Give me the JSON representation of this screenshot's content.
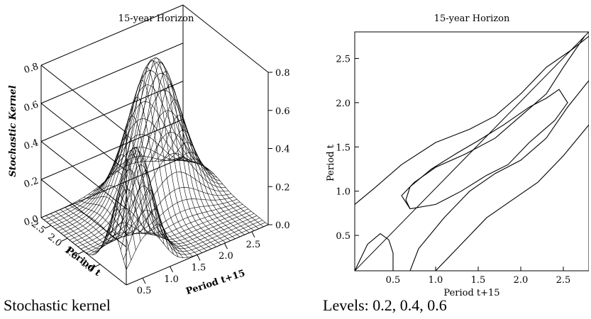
{
  "captions": {
    "left": "Stochastic kernel",
    "right": "Levels: 0.2, 0.4, 0.6"
  },
  "chart_data": [
    {
      "type": "surface",
      "title": "15-year Horizon",
      "zlabel": "Stochastic Kernel",
      "xlabel": "Period t+15",
      "ylabel": "Period t",
      "x_ticks": [
        "0.5",
        "1.0",
        "1.5",
        "2.0",
        "2.5"
      ],
      "y_ticks": [
        "1.0",
        "1.5",
        "2.0",
        "2.5"
      ],
      "z_ticks": [
        "0.0",
        "0.2",
        "0.4",
        "0.6",
        "0.8"
      ],
      "z_ticks_right": [
        "0.0",
        "0.2",
        "0.4",
        "0.6",
        "0.8"
      ],
      "xlim": [
        0.2,
        2.8
      ],
      "ylim": [
        0.2,
        2.8
      ],
      "zlim": [
        0,
        0.8
      ],
      "peaks": [
        {
          "x": 0.6,
          "y": 0.6,
          "z": 0.62
        },
        {
          "x": 1.8,
          "y": 2.0,
          "z": 0.75
        }
      ]
    },
    {
      "type": "contour",
      "title": "15-year Horizon",
      "xlabel": "Period t+15",
      "ylabel": "Period t",
      "x_ticks": [
        "0.5",
        "1.0",
        "1.5",
        "2.0",
        "2.5"
      ],
      "y_ticks": [
        "0.5",
        "1.0",
        "1.5",
        "2.0",
        "2.5"
      ],
      "xlim": [
        0.05,
        2.8
      ],
      "ylim": [
        0.1,
        2.8
      ],
      "levels": [
        0.2,
        0.4,
        0.6
      ],
      "diagonal": true,
      "contours": [
        {
          "name": "upper-outer",
          "points": [
            [
              0.05,
              0.85
            ],
            [
              0.3,
              1.05
            ],
            [
              0.6,
              1.3
            ],
            [
              1.0,
              1.55
            ],
            [
              1.4,
              1.7
            ],
            [
              1.7,
              1.85
            ],
            [
              2.0,
              2.1
            ],
            [
              2.3,
              2.4
            ],
            [
              2.6,
              2.6
            ],
            [
              2.8,
              2.75
            ]
          ]
        },
        {
          "name": "upper-inner",
          "points": [
            [
              0.7,
              0.8
            ],
            [
              0.6,
              0.95
            ],
            [
              0.75,
              1.1
            ],
            [
              1.0,
              1.27
            ],
            [
              1.35,
              1.42
            ],
            [
              1.7,
              1.6
            ],
            [
              2.0,
              1.85
            ],
            [
              2.3,
              2.1
            ],
            [
              2.5,
              2.4
            ],
            [
              2.75,
              2.75
            ]
          ]
        },
        {
          "name": "inner-loop",
          "points": [
            [
              0.7,
              0.8
            ],
            [
              1.0,
              0.85
            ],
            [
              1.3,
              1.0
            ],
            [
              1.6,
              1.18
            ],
            [
              1.85,
              1.3
            ],
            [
              2.1,
              1.55
            ],
            [
              2.4,
              1.8
            ],
            [
              2.55,
              2.0
            ],
            [
              2.45,
              2.15
            ],
            [
              2.3,
              2.05
            ],
            [
              2.1,
              1.95
            ],
            [
              1.8,
              1.75
            ],
            [
              1.5,
              1.57
            ],
            [
              1.25,
              1.43
            ],
            [
              0.95,
              1.25
            ],
            [
              0.7,
              1.05
            ],
            [
              0.65,
              0.9
            ],
            [
              0.7,
              0.8
            ]
          ]
        },
        {
          "name": "lower-middle",
          "points": [
            [
              0.7,
              0.1
            ],
            [
              0.8,
              0.35
            ],
            [
              1.1,
              0.7
            ],
            [
              1.4,
              1.0
            ],
            [
              1.7,
              1.2
            ],
            [
              2.0,
              1.35
            ],
            [
              2.3,
              1.6
            ],
            [
              2.55,
              1.95
            ],
            [
              2.8,
              2.25
            ]
          ]
        },
        {
          "name": "lower-outer",
          "points": [
            [
              1.0,
              0.1
            ],
            [
              1.3,
              0.4
            ],
            [
              1.6,
              0.7
            ],
            [
              1.9,
              0.9
            ],
            [
              2.2,
              1.1
            ],
            [
              2.5,
              1.4
            ],
            [
              2.8,
              1.75
            ]
          ]
        },
        {
          "name": "bottom-left-loop",
          "points": [
            [
              0.05,
              0.1
            ],
            [
              0.2,
              0.4
            ],
            [
              0.35,
              0.52
            ],
            [
              0.45,
              0.45
            ],
            [
              0.5,
              0.3
            ],
            [
              0.5,
              0.1
            ]
          ]
        }
      ]
    }
  ]
}
